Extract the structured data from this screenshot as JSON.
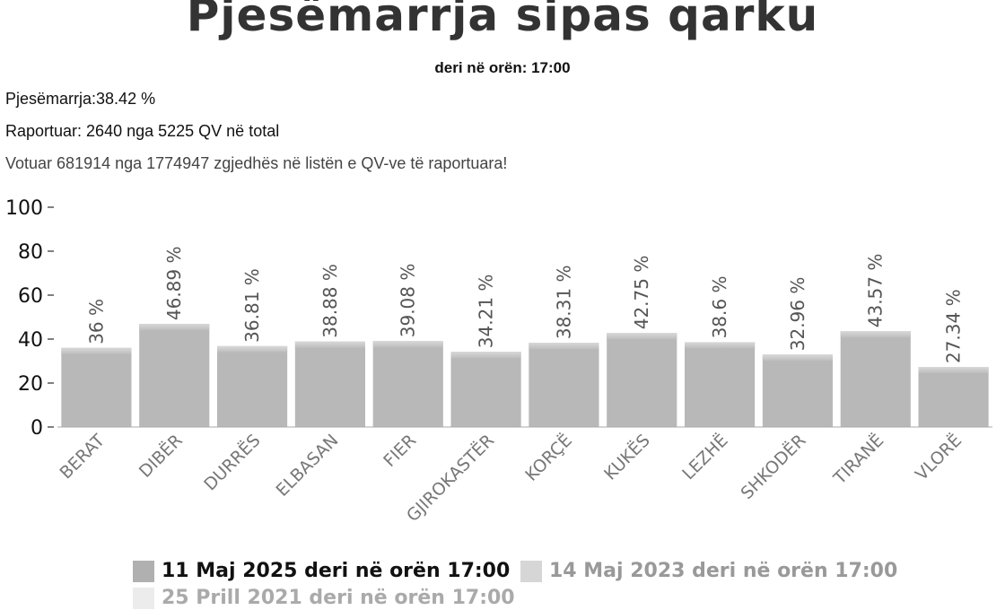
{
  "header": {
    "title": "Pjesëmarrja sipas qarku",
    "subtitle": "deri në orën: 17:00"
  },
  "stats": {
    "participation": "Pjesëmarrja:38.42 %",
    "reported": "Raportuar: 2640 nga 5225 QV në total",
    "voted": "Votuar 681914 nga 1774947 zgjedhës në listën e QV-ve të raportuara!"
  },
  "chart_data": {
    "type": "bar",
    "title": "Pjesëmarrja sipas qarku",
    "subtitle": "deri në orën: 17:00",
    "categories": [
      "BERAT",
      "DIBËR",
      "DURRËS",
      "ELBASAN",
      "FIER",
      "GJIROKASTËR",
      "KORÇË",
      "KUKËS",
      "LEZHË",
      "SHKODËR",
      "TIRANË",
      "VLORË"
    ],
    "series": [
      {
        "name": "11 Maj 2025 deri në orën 17:00",
        "values": [
          36,
          46.89,
          36.81,
          38.88,
          39.08,
          34.21,
          38.31,
          42.75,
          38.6,
          32.96,
          43.57,
          27.34
        ],
        "data_labels": [
          "36 %",
          "46.89 %",
          "36.81 %",
          "38.88 %",
          "39.08 %",
          "34.21 %",
          "38.31 %",
          "42.75 %",
          "38.6 %",
          "32.96 %",
          "43.57 %",
          "27.34 %"
        ],
        "color": "#b8b8b8"
      }
    ],
    "legend": [
      {
        "label": "11 Maj 2025 deri në orën 17:00",
        "color": "#b0b0b0",
        "text_color": "#111111"
      },
      {
        "label": "14 Maj 2023 deri në orën 17:00",
        "color": "#d6d6d6",
        "text_color": "#999999"
      },
      {
        "label": "25 Prill 2021 deri në orën 17:00",
        "color": "#ececec",
        "text_color": "#aaaaaa"
      }
    ],
    "ylim": [
      0,
      100
    ],
    "yticks": [
      0,
      20,
      40,
      60,
      80,
      100
    ],
    "grid": false,
    "legend_position": "bottom-center"
  }
}
